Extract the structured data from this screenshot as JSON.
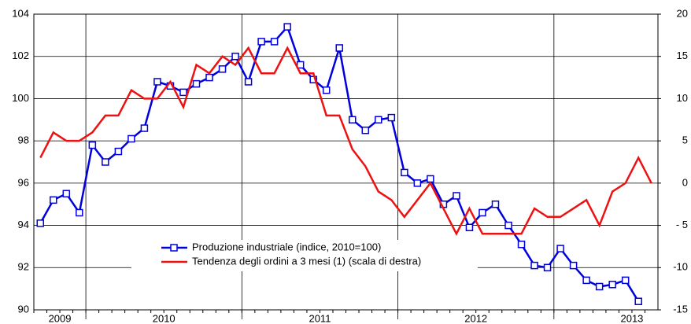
{
  "chart_data": {
    "type": "line",
    "categories": [
      null,
      "2009",
      null,
      null,
      null,
      null,
      null,
      null,
      null,
      "2010",
      null,
      null,
      null,
      null,
      null,
      null,
      null,
      null,
      null,
      null,
      null,
      "2011",
      null,
      null,
      null,
      null,
      null,
      null,
      null,
      null,
      null,
      null,
      null,
      "2012",
      null,
      null,
      null,
      null,
      null,
      null,
      null,
      null,
      null,
      null,
      null,
      "2013",
      null,
      null
    ],
    "series": [
      {
        "name": "Produzione industriale (indice, 2010=100)",
        "color": "#0000dd",
        "marker": "square",
        "values": [
          94.1,
          95.2,
          95.5,
          94.6,
          97.8,
          97.0,
          97.5,
          98.1,
          98.6,
          100.8,
          100.6,
          100.3,
          100.7,
          101.0,
          101.4,
          102.0,
          100.8,
          102.7,
          102.7,
          103.4,
          101.6,
          100.9,
          100.4,
          102.4,
          99.0,
          98.5,
          99.0,
          99.1,
          96.5,
          96.0,
          96.2,
          95.0,
          95.4,
          93.9,
          94.6,
          95.0,
          94.0,
          93.1,
          92.1,
          92.0,
          92.9,
          92.1,
          91.4,
          91.1,
          91.2,
          91.4,
          90.4,
          null
        ]
      },
      {
        "name": "Tendenza degli ordini a 3 mesi (1) (scala di destra)",
        "color": "#ee1111",
        "axis": "y2",
        "values": [
          3,
          6,
          5,
          5,
          6,
          8,
          8,
          11,
          10,
          10,
          12,
          9,
          14,
          13,
          15,
          14,
          16,
          13,
          13,
          16,
          13,
          13,
          8,
          8,
          4,
          2,
          -1,
          -2,
          -4,
          -2,
          0,
          -3,
          -6,
          -3,
          -6,
          -6,
          -6,
          -6,
          -3,
          -4,
          -4,
          -3,
          -2,
          -5,
          -1,
          0,
          3,
          0
        ]
      }
    ],
    "ylim": [
      90,
      104
    ],
    "yticks": [
      90,
      92,
      94,
      96,
      98,
      100,
      102,
      104
    ],
    "y2lim": [
      -15,
      20
    ],
    "y2ticks": [
      -15,
      -10,
      {
        "value": -5,
        "label": "- 5"
      },
      0,
      5,
      10,
      15,
      20
    ],
    "grid": true
  }
}
